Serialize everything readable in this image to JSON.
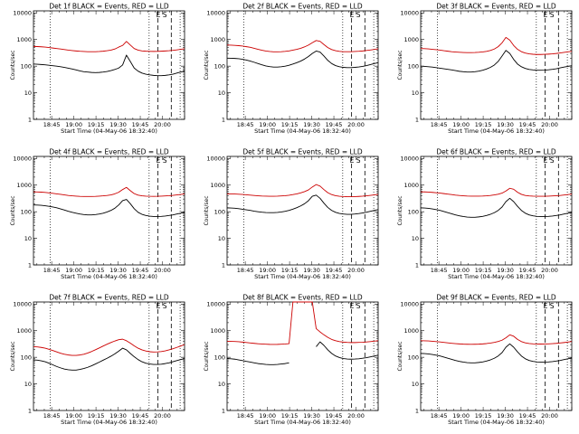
{
  "chart_data": {
    "type": "line",
    "grid_layout": "3x3",
    "x_axis": {
      "label": "Start Time (04-May-06 18:32:40)",
      "range": [
        "18:32:40",
        "20:15"
      ],
      "tick_labels": [
        "18:45",
        "19:00",
        "19:15",
        "19:30",
        "19:45",
        "20:00"
      ]
    },
    "y_axis": {
      "label": "Counts/sec",
      "scale": "log",
      "range": [
        1,
        12000
      ],
      "tick_labels": [
        "1",
        "10",
        "100",
        "1000",
        "10000"
      ]
    },
    "legend": {
      "events": "BLACK = Events",
      "lld": "RED = LLD"
    },
    "vertical_markers": {
      "dotted": [
        "18:44",
        "19:51",
        "20:12"
      ],
      "dashed": [
        "19:57",
        "20:06"
      ]
    },
    "panels": [
      {
        "title": "Det 1f BLACK = Events, RED = LLD",
        "overlay_label": "E S",
        "series": [
          {
            "name": "Events",
            "color": "#000000",
            "values": [
              120,
              118,
              115,
              112,
              108,
              104,
              100,
              95,
              90,
              84,
              78,
              72,
              66,
              62,
              60,
              58,
              57,
              58,
              60,
              63,
              68,
              75,
              85,
              110,
              260,
              150,
              85,
              65,
              55,
              50,
              47,
              45,
              44,
              44,
              45,
              47,
              50,
              55,
              60,
              65
            ]
          },
          {
            "name": "LLD",
            "color": "#cc0000",
            "values": [
              550,
              545,
              535,
              520,
              500,
              480,
              460,
              440,
              420,
              400,
              385,
              372,
              362,
              355,
              350,
              348,
              350,
              355,
              365,
              380,
              400,
              440,
              520,
              600,
              850,
              620,
              460,
              400,
              375,
              365,
              360,
              358,
              360,
              365,
              372,
              380,
              392,
              410,
              430,
              450
            ]
          }
        ]
      },
      {
        "title": "Det 2f BLACK = Events, RED = LLD",
        "overlay_label": "E S",
        "series": [
          {
            "name": "Events",
            "color": "#000000",
            "values": [
              200,
              198,
              195,
              190,
              182,
              170,
              155,
              140,
              125,
              112,
              102,
              96,
              92,
              92,
              95,
              100,
              108,
              120,
              135,
              155,
              185,
              230,
              300,
              370,
              340,
              240,
              165,
              125,
              105,
              95,
              90,
              88,
              88,
              90,
              93,
              98,
              105,
              115,
              125,
              135
            ]
          },
          {
            "name": "LLD",
            "color": "#cc0000",
            "values": [
              620,
              615,
              605,
              590,
              570,
              540,
              510,
              470,
              430,
              395,
              370,
              355,
              345,
              345,
              350,
              360,
              375,
              400,
              430,
              470,
              530,
              620,
              760,
              920,
              860,
              650,
              500,
              420,
              380,
              360,
              350,
              348,
              350,
              355,
              362,
              372,
              388,
              405,
              425,
              450
            ]
          }
        ]
      },
      {
        "title": "Det 3f BLACK = Events, RED = LLD",
        "overlay_label": "E S",
        "series": [
          {
            "name": "Events",
            "color": "#000000",
            "values": [
              100,
              98,
              95,
              92,
              88,
              84,
              80,
              76,
              72,
              68,
              64,
              62,
              60,
              60,
              62,
              65,
              70,
              78,
              90,
              110,
              150,
              240,
              390,
              300,
              180,
              120,
              95,
              82,
              75,
              72,
              70,
              70,
              71,
              73,
              76,
              80,
              86,
              92,
              98,
              104
            ]
          },
          {
            "name": "LLD",
            "color": "#cc0000",
            "values": [
              460,
              455,
              445,
              430,
              415,
              400,
              380,
              365,
              350,
              340,
              332,
              326,
              322,
              322,
              325,
              332,
              342,
              360,
              390,
              440,
              540,
              750,
              1200,
              950,
              600,
              430,
              350,
              310,
              290,
              280,
              275,
              275,
              278,
              283,
              290,
              300,
              315,
              330,
              345,
              360
            ]
          }
        ]
      },
      {
        "title": "Det 4f BLACK = Events, RED = LLD",
        "overlay_label": "E S",
        "series": [
          {
            "name": "Events",
            "color": "#000000",
            "values": [
              180,
              178,
              174,
              168,
              160,
              150,
              140,
              128,
              116,
              104,
              95,
              88,
              82,
              78,
              76,
              76,
              78,
              82,
              88,
              98,
              112,
              135,
              180,
              260,
              290,
              200,
              130,
              95,
              80,
              72,
              68,
              66,
              66,
              67,
              69,
              72,
              76,
              82,
              88,
              95
            ]
          },
          {
            "name": "LLD",
            "color": "#cc0000",
            "values": [
              560,
              555,
              545,
              530,
              510,
              490,
              470,
              450,
              430,
              410,
              395,
              385,
              378,
              375,
              374,
              375,
              378,
              385,
              395,
              410,
              430,
              470,
              540,
              680,
              820,
              620,
              480,
              420,
              395,
              385,
              380,
              378,
              380,
              385,
              392,
              400,
              412,
              428,
              445,
              465
            ]
          }
        ]
      },
      {
        "title": "Det 5f BLACK = Events, RED = LLD",
        "overlay_label": "E S",
        "series": [
          {
            "name": "Events",
            "color": "#000000",
            "values": [
              140,
              138,
              135,
              130,
              124,
              118,
              112,
              105,
              100,
              96,
              93,
              92,
              92,
              94,
              98,
              104,
              112,
              125,
              142,
              165,
              200,
              260,
              380,
              420,
              320,
              210,
              145,
              112,
              95,
              86,
              82,
              80,
              80,
              82,
              85,
              90,
              96,
              104,
              112,
              120
            ]
          },
          {
            "name": "LLD",
            "color": "#cc0000",
            "values": [
              470,
              468,
              462,
              455,
              445,
              432,
              420,
              408,
              398,
              390,
              385,
              382,
              382,
              385,
              392,
              402,
              418,
              440,
              470,
              510,
              570,
              660,
              850,
              1050,
              920,
              680,
              520,
              440,
              400,
              380,
              370,
              366,
              366,
              370,
              376,
              385,
              398,
              412,
              428,
              445
            ]
          }
        ]
      },
      {
        "title": "Det 6f BLACK = Events, RED = LLD",
        "overlay_label": "E S",
        "series": [
          {
            "name": "Events",
            "color": "#000000",
            "values": [
              140,
              138,
              134,
              128,
              120,
              112,
              102,
              92,
              84,
              76,
              70,
              66,
              63,
              62,
              62,
              64,
              67,
              72,
              80,
              92,
              112,
              150,
              240,
              320,
              240,
              160,
              112,
              88,
              76,
              70,
              67,
              66,
              66,
              67,
              69,
              72,
              76,
              82,
              88,
              94
            ]
          },
          {
            "name": "LLD",
            "color": "#cc0000",
            "values": [
              560,
              556,
              548,
              535,
              518,
              500,
              480,
              460,
              440,
              422,
              408,
              398,
              390,
              386,
              385,
              386,
              390,
              398,
              410,
              428,
              455,
              500,
              600,
              760,
              700,
              540,
              450,
              410,
              392,
              384,
              380,
              380,
              382,
              386,
              392,
              400,
              410,
              424,
              440,
              458
            ]
          }
        ]
      },
      {
        "title": "Det 7f BLACK = Events, RED = LLD",
        "overlay_label": "E S",
        "series": [
          {
            "name": "Events",
            "color": "#000000",
            "values": [
              80,
              78,
              74,
              68,
              60,
              52,
              45,
              40,
              36,
              34,
              33,
              33,
              35,
              38,
              42,
              48,
              56,
              66,
              78,
              92,
              110,
              135,
              170,
              220,
              190,
              140,
              105,
              82,
              68,
              60,
              56,
              54,
              54,
              55,
              58,
              62,
              68,
              75,
              82,
              90
            ]
          },
          {
            "name": "LLD",
            "color": "#cc0000",
            "values": [
              250,
              245,
              235,
              220,
              200,
              180,
              160,
              142,
              130,
              122,
              118,
              118,
              122,
              130,
              145,
              165,
              192,
              225,
              265,
              310,
              360,
              410,
              460,
              480,
              420,
              340,
              270,
              220,
              190,
              172,
              162,
              158,
              160,
              165,
              175,
              190,
              210,
              235,
              265,
              300
            ]
          }
        ]
      },
      {
        "title": "Det 8f BLACK = Events, RED = LLD",
        "overlay_label": "E S",
        "series": [
          {
            "name": "Events",
            "color": "#000000",
            "values": [
              90,
              88,
              85,
              80,
              75,
              70,
              66,
              62,
              58,
              56,
              54,
              53,
              53,
              54,
              56,
              58,
              62,
              null,
              null,
              null,
              null,
              null,
              null,
              250,
              380,
              280,
              190,
              140,
              112,
              98,
              90,
              86,
              85,
              86,
              88,
              92,
              97,
              104,
              112,
              120
            ]
          },
          {
            "name": "LLD",
            "color": "#cc0000",
            "values": [
              400,
              398,
              392,
              384,
              372,
              360,
              346,
              334,
              324,
              316,
              310,
              306,
              305,
              306,
              310,
              316,
              325,
              12000,
              12000,
              12000,
              12000,
              12000,
              12000,
              1200,
              900,
              700,
              560,
              470,
              420,
              390,
              372,
              362,
              358,
              358,
              362,
              368,
              378,
              390,
              405,
              420
            ]
          }
        ]
      },
      {
        "title": "Det 9f BLACK = Events, RED = LLD",
        "overlay_label": "E S",
        "series": [
          {
            "name": "Events",
            "color": "#000000",
            "values": [
              140,
              138,
              134,
              128,
              120,
              112,
              102,
              92,
              84,
              76,
              70,
              66,
              63,
              62,
              62,
              64,
              67,
              72,
              80,
              92,
              112,
              150,
              240,
              320,
              240,
              160,
              112,
              88,
              76,
              70,
              67,
              66,
              66,
              67,
              69,
              72,
              76,
              82,
              88,
              94
            ]
          },
          {
            "name": "LLD",
            "color": "#cc0000",
            "values": [
              420,
              418,
              412,
              402,
              390,
              376,
              362,
              348,
              336,
              326,
              318,
              312,
              309,
              308,
              309,
              312,
              318,
              328,
              342,
              362,
              392,
              440,
              540,
              700,
              620,
              470,
              390,
              350,
              330,
              320,
              316,
              315,
              316,
              320,
              326,
              334,
              345,
              358,
              374,
              392
            ]
          }
        ]
      }
    ]
  }
}
